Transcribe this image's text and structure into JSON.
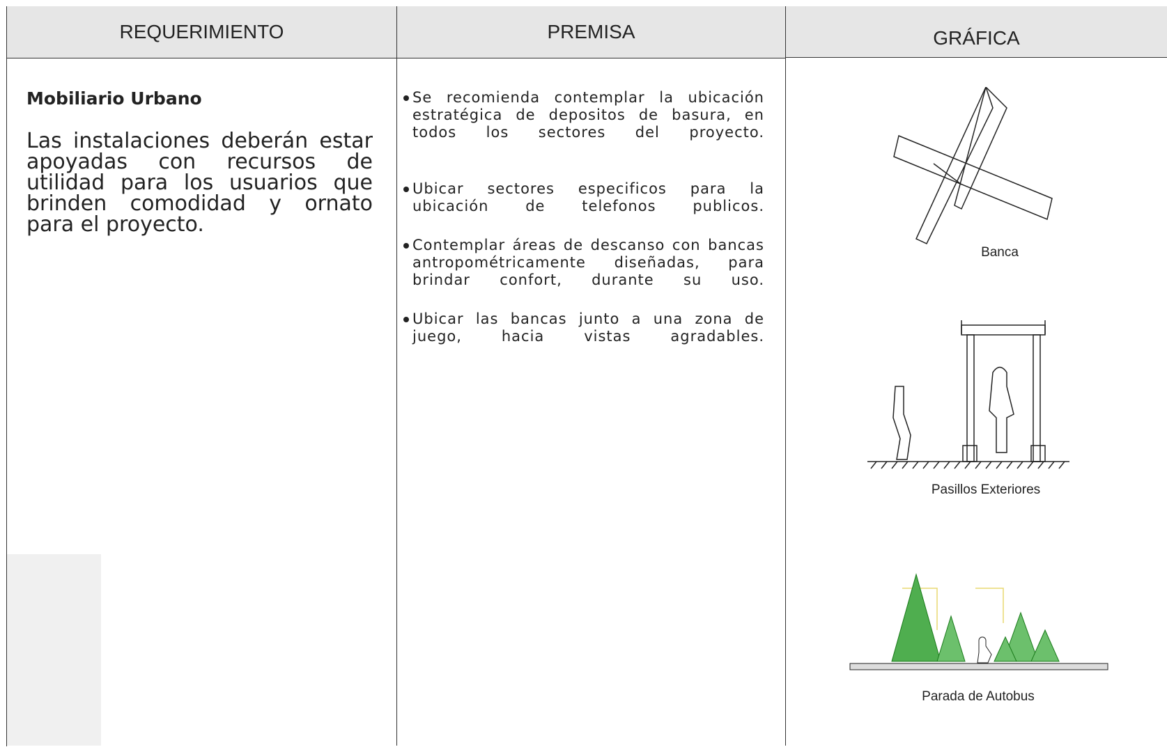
{
  "header": {
    "columns": [
      "REQUERIMIENTO",
      "PREMISA",
      "GRÁFICA"
    ]
  },
  "requirement": {
    "title": "Mobiliario Urbano",
    "body": "Las instalaciones deberán estar apoyadas con recursos de utilidad para los usuarios que brinden comodidad y ornato para el proyecto."
  },
  "premises": [
    "Se recomienda contemplar la ubicación estratégica de depositos de basura, en todos los sectores del proyecto.",
    "Ubicar sectores especificos para la ubicación de telefonos publicos.",
    "Contemplar áreas de descanso con bancas antropométricamente diseñadas, para brindar confort, durante su uso.",
    "Ubicar las bancas junto a una zona de juego, hacia vistas agradables."
  ],
  "graphics": [
    "Banca",
    "Pasillos Exteriores",
    "Parada de Autobus"
  ]
}
